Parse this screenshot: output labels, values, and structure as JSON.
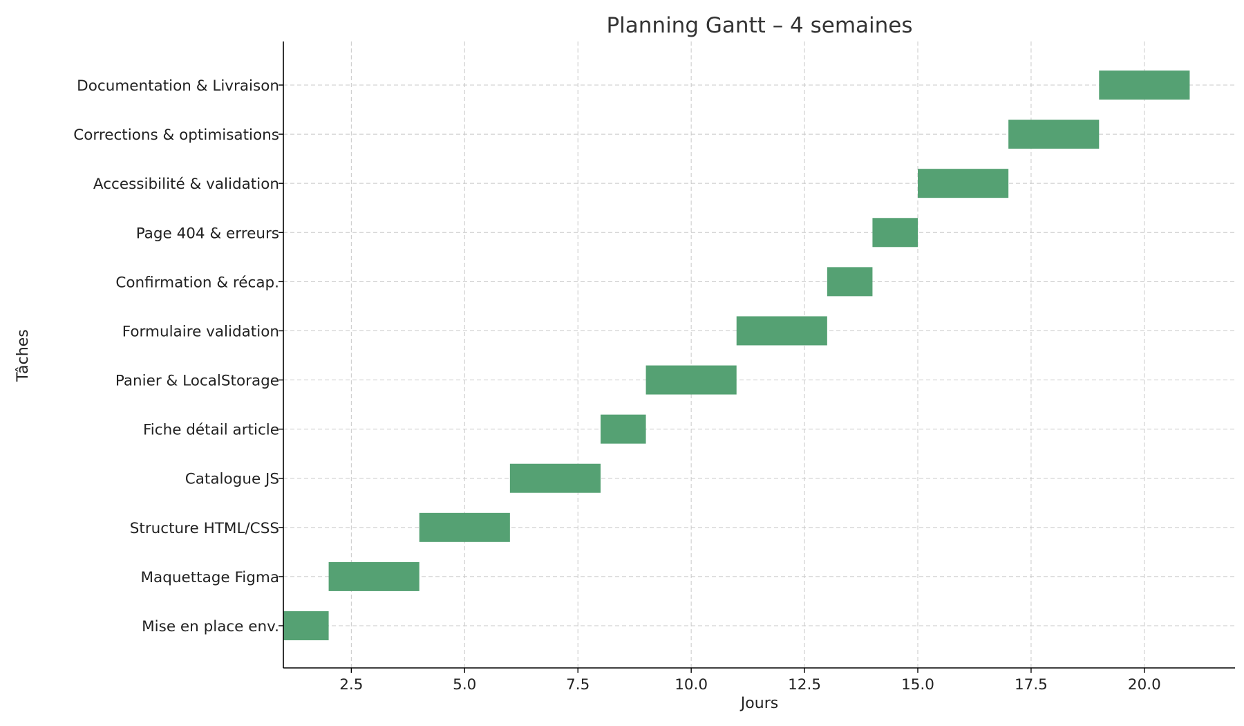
{
  "chart_data": {
    "type": "bar",
    "orientation": "horizontal",
    "title": "Planning Gantt – 4 semaines",
    "xlabel": "Jours",
    "ylabel": "Tâches",
    "xlim": [
      1,
      22
    ],
    "xticks": [
      2.5,
      5.0,
      7.5,
      10.0,
      12.5,
      15.0,
      17.5,
      20.0
    ],
    "xtick_labels": [
      "2.5",
      "5.0",
      "7.5",
      "10.0",
      "12.5",
      "15.0",
      "17.5",
      "20.0"
    ],
    "grid": true,
    "bar_color": "#55a173",
    "tasks": [
      {
        "name": "Mise en place env.",
        "start": 1,
        "end": 2
      },
      {
        "name": "Maquettage Figma",
        "start": 2,
        "end": 4
      },
      {
        "name": "Structure HTML/CSS",
        "start": 4,
        "end": 6
      },
      {
        "name": "Catalogue JS",
        "start": 6,
        "end": 8
      },
      {
        "name": "Fiche détail article",
        "start": 8,
        "end": 9
      },
      {
        "name": "Panier & LocalStorage",
        "start": 9,
        "end": 11
      },
      {
        "name": "Formulaire validation",
        "start": 11,
        "end": 13
      },
      {
        "name": "Confirmation & récap.",
        "start": 13,
        "end": 14
      },
      {
        "name": "Page 404 & erreurs",
        "start": 14,
        "end": 15
      },
      {
        "name": "Accessibilité & validation",
        "start": 15,
        "end": 17
      },
      {
        "name": "Corrections & optimisations",
        "start": 17,
        "end": 19
      },
      {
        "name": "Documentation & Livraison",
        "start": 19,
        "end": 21
      }
    ]
  }
}
